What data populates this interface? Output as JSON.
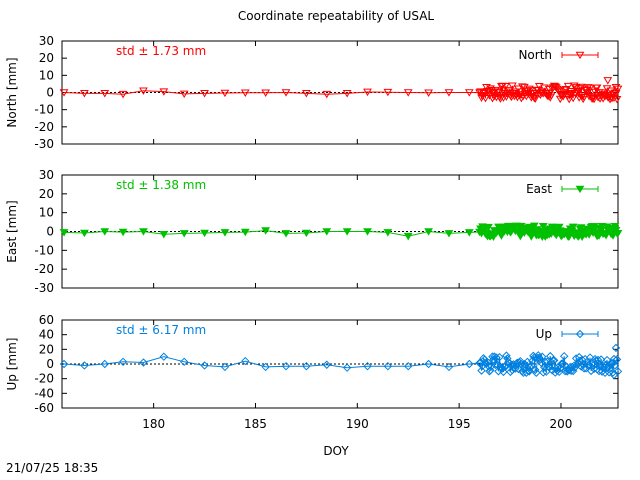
{
  "title": "Coordinate repeatability of USAL",
  "timestamp": "21/07/25 18:35",
  "chart_data": [
    {
      "type": "scatter",
      "series_name": "North",
      "ylabel": "North [mm]",
      "xlabel": "",
      "stat_label": "std ± 1.73 mm",
      "color": "#ff0000",
      "marker": "triangle-down-open",
      "xlim": [
        175.5,
        202.8
      ],
      "ylim": [
        -30,
        30
      ],
      "yticks": [
        30,
        20,
        10,
        0,
        -10,
        -20,
        -30
      ],
      "grid": false,
      "legend": "top-right",
      "sparse_points": [
        [
          175.6,
          0
        ],
        [
          176.6,
          -0.5
        ],
        [
          177.6,
          -0.5
        ],
        [
          178.5,
          -1
        ],
        [
          179.5,
          1
        ],
        [
          180.5,
          0.5
        ],
        [
          181.5,
          -0.8
        ],
        [
          182.5,
          -0.5
        ],
        [
          183.5,
          -0.3
        ],
        [
          184.5,
          -0.2
        ],
        [
          185.5,
          -0.2
        ],
        [
          186.5,
          0
        ],
        [
          187.5,
          -0.5
        ],
        [
          188.5,
          -1
        ],
        [
          189.5,
          -0.5
        ],
        [
          190.5,
          0.3
        ],
        [
          191.5,
          0.2
        ],
        [
          192.5,
          0
        ],
        [
          193.5,
          -0.2
        ],
        [
          194.5,
          0
        ],
        [
          195.5,
          0
        ]
      ],
      "dense_range": [
        196.0,
        202.8
      ],
      "dense_amplitude": 4,
      "outliers": [
        [
          202.3,
          7
        ],
        [
          202.7,
          3
        ]
      ]
    },
    {
      "type": "scatter",
      "series_name": "East",
      "ylabel": "East [mm]",
      "xlabel": "",
      "stat_label": "std ± 1.38 mm",
      "color": "#00c000",
      "marker": "triangle-down-filled",
      "xlim": [
        175.5,
        202.8
      ],
      "ylim": [
        -30,
        30
      ],
      "yticks": [
        30,
        20,
        10,
        0,
        -10,
        -20,
        -30
      ],
      "grid": false,
      "legend": "top-right",
      "sparse_points": [
        [
          175.6,
          -0.5
        ],
        [
          176.6,
          -0.8
        ],
        [
          177.6,
          0
        ],
        [
          178.5,
          -0.3
        ],
        [
          179.5,
          0
        ],
        [
          180.5,
          -1.5
        ],
        [
          181.5,
          -1
        ],
        [
          182.5,
          -0.8
        ],
        [
          183.5,
          -0.5
        ],
        [
          184.5,
          -0.3
        ],
        [
          185.5,
          0.5
        ],
        [
          186.5,
          -1
        ],
        [
          187.5,
          -0.8
        ],
        [
          188.5,
          0
        ],
        [
          189.5,
          0
        ],
        [
          190.5,
          0
        ],
        [
          191.5,
          -0.5
        ],
        [
          192.5,
          -2.5
        ],
        [
          193.5,
          0
        ],
        [
          194.5,
          -1
        ],
        [
          195.5,
          -0.5
        ]
      ],
      "dense_range": [
        196.0,
        202.8
      ],
      "dense_amplitude": 3,
      "outliers": []
    },
    {
      "type": "scatter",
      "series_name": "Up",
      "ylabel": "Up [mm]",
      "xlabel": "DOY",
      "stat_label": "std ± 6.17 mm",
      "color": "#0080e0",
      "marker": "diamond-open",
      "xlim": [
        175.5,
        202.8
      ],
      "ylim": [
        -60,
        60
      ],
      "yticks": [
        60,
        40,
        20,
        0,
        -20,
        -40,
        -60
      ],
      "xticks": [
        180,
        185,
        190,
        195,
        200
      ],
      "grid": false,
      "legend": "top-right",
      "sparse_points": [
        [
          175.6,
          0
        ],
        [
          176.6,
          -2
        ],
        [
          177.6,
          0
        ],
        [
          178.5,
          3
        ],
        [
          179.5,
          2
        ],
        [
          180.5,
          10
        ],
        [
          181.5,
          3
        ],
        [
          182.5,
          -2
        ],
        [
          183.5,
          -4
        ],
        [
          184.5,
          4
        ],
        [
          185.5,
          -4
        ],
        [
          186.5,
          -3
        ],
        [
          187.5,
          -3
        ],
        [
          188.5,
          -1
        ],
        [
          189.5,
          -5
        ],
        [
          190.5,
          -3
        ],
        [
          191.5,
          -3
        ],
        [
          192.5,
          -3
        ],
        [
          193.5,
          0
        ],
        [
          194.5,
          -4
        ],
        [
          195.5,
          0
        ]
      ],
      "dense_range": [
        196.0,
        202.8
      ],
      "dense_amplitude": 12,
      "outliers": [
        [
          202.6,
          -15
        ],
        [
          202.7,
          22
        ]
      ]
    }
  ]
}
